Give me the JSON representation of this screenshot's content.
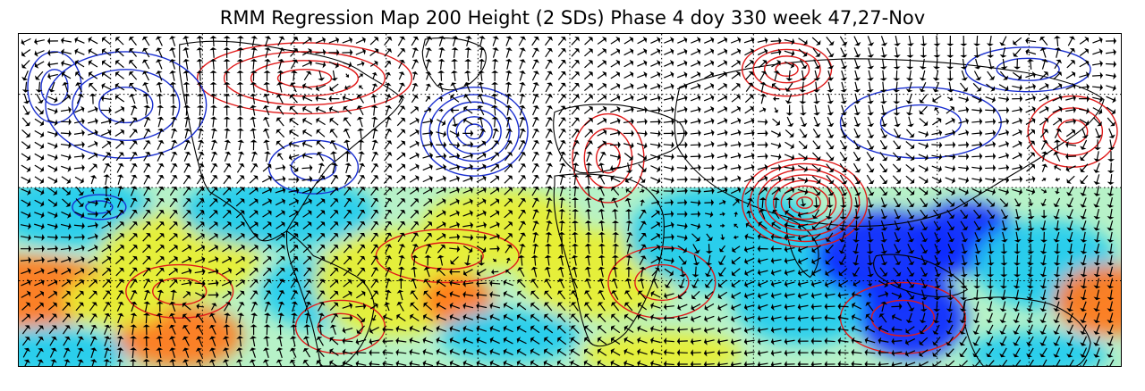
{
  "title": "RMM Regression Map 200 Height (2 SDs) Phase 4 doy 330 week 47,27-Nov",
  "colors": {
    "positive_contour": "#e01a1a",
    "negative_contour": "#1a2fd0",
    "wind_vector": "#000000",
    "coastline": "#000000",
    "gridline": "#000000",
    "shading_low": "#0a2aff",
    "shading_mid_low": "#22ccee",
    "shading_mid": "#b7f2c8",
    "shading_mid_high": "#e8ef33",
    "shading_high": "#ff7a1a"
  },
  "map": {
    "projection": "equirectangular",
    "shaded_region": "tropics",
    "gridlines": "dotted",
    "overlays": [
      "height contours",
      "wind vectors",
      "coastlines"
    ]
  }
}
